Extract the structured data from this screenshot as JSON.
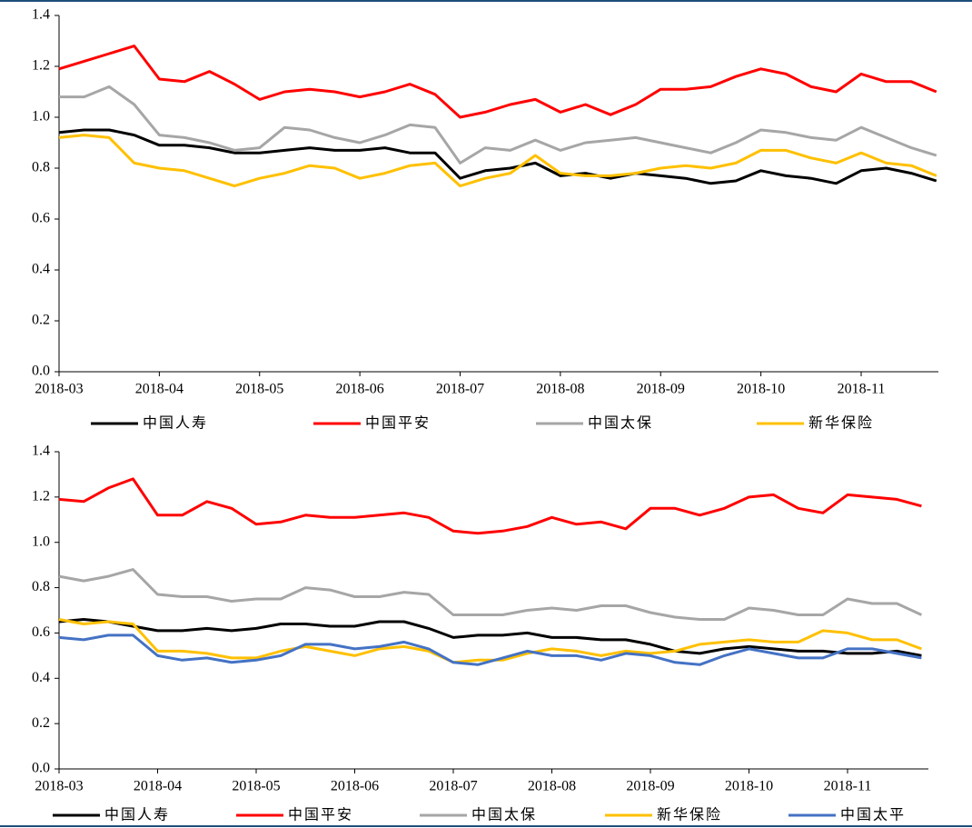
{
  "chart_data": [
    {
      "type": "line",
      "categories": [
        "2018-03",
        null,
        null,
        null,
        "2018-04",
        null,
        null,
        null,
        "2018-05",
        null,
        null,
        null,
        "2018-06",
        null,
        null,
        null,
        "2018-07",
        null,
        null,
        null,
        "2018-08",
        null,
        null,
        null,
        "2018-09",
        null,
        null,
        null,
        "2018-10",
        null,
        null,
        null,
        "2018-11",
        null,
        null,
        null
      ],
      "ylim": [
        0,
        1.4
      ],
      "yticks": [
        {
          "value": 0,
          "label": "0.0"
        },
        0.2,
        0.4,
        0.6,
        0.8,
        {
          "value": 1,
          "label": "1.0"
        },
        1.2,
        1.4
      ],
      "series": [
        {
          "name": "中国人寿",
          "color": "#000000",
          "values": [
            0.94,
            0.95,
            0.95,
            0.93,
            0.89,
            0.89,
            0.88,
            0.86,
            0.86,
            0.87,
            0.88,
            0.87,
            0.87,
            0.88,
            0.86,
            0.86,
            0.76,
            0.79,
            0.8,
            0.82,
            0.77,
            0.78,
            0.76,
            0.78,
            0.77,
            0.76,
            0.74,
            0.75,
            0.79,
            0.77,
            0.76,
            0.74,
            0.79,
            0.8,
            0.78,
            0.75
          ]
        },
        {
          "name": "中国平安",
          "color": "#ff0000",
          "values": [
            1.19,
            1.22,
            1.25,
            1.28,
            1.15,
            1.14,
            1.18,
            1.13,
            1.07,
            1.1,
            1.11,
            1.1,
            1.08,
            1.1,
            1.13,
            1.09,
            1.0,
            1.02,
            1.05,
            1.07,
            1.02,
            1.05,
            1.01,
            1.05,
            1.11,
            1.11,
            1.12,
            1.16,
            1.19,
            1.17,
            1.12,
            1.1,
            1.17,
            1.14,
            1.14,
            1.1
          ]
        },
        {
          "name": "中国太保",
          "color": "#a6a6a6",
          "values": [
            1.08,
            1.08,
            1.12,
            1.05,
            0.93,
            0.92,
            0.9,
            0.87,
            0.88,
            0.96,
            0.95,
            0.92,
            0.9,
            0.93,
            0.97,
            0.96,
            0.82,
            0.88,
            0.87,
            0.91,
            0.87,
            0.9,
            0.91,
            0.92,
            0.9,
            0.88,
            0.86,
            0.9,
            0.95,
            0.94,
            0.92,
            0.91,
            0.96,
            0.92,
            0.88,
            0.85
          ]
        },
        {
          "name": "新华保险",
          "color": "#ffc000",
          "values": [
            0.92,
            0.93,
            0.92,
            0.82,
            0.8,
            0.79,
            0.76,
            0.73,
            0.76,
            0.78,
            0.81,
            0.8,
            0.76,
            0.78,
            0.81,
            0.82,
            0.73,
            0.76,
            0.78,
            0.85,
            0.78,
            0.77,
            0.77,
            0.78,
            0.8,
            0.81,
            0.8,
            0.82,
            0.87,
            0.87,
            0.84,
            0.82,
            0.86,
            0.82,
            0.81,
            0.77
          ]
        }
      ]
    },
    {
      "type": "line",
      "categories": [
        "2018-03",
        null,
        null,
        null,
        "2018-04",
        null,
        null,
        null,
        "2018-05",
        null,
        null,
        null,
        "2018-06",
        null,
        null,
        null,
        "2018-07",
        null,
        null,
        null,
        "2018-08",
        null,
        null,
        null,
        "2018-09",
        null,
        null,
        null,
        "2018-10",
        null,
        null,
        null,
        "2018-11",
        null,
        null,
        null
      ],
      "ylim": [
        0,
        1.4
      ],
      "yticks": [
        {
          "value": 0,
          "label": "0.0"
        },
        0.2,
        0.4,
        0.6,
        0.8,
        {
          "value": 1,
          "label": "1.0"
        },
        1.2,
        1.4
      ],
      "series": [
        {
          "name": "中国人寿",
          "color": "#000000",
          "values": [
            0.65,
            0.66,
            0.65,
            0.63,
            0.61,
            0.61,
            0.62,
            0.61,
            0.62,
            0.64,
            0.64,
            0.63,
            0.63,
            0.65,
            0.65,
            0.62,
            0.58,
            0.59,
            0.59,
            0.6,
            0.58,
            0.58,
            0.57,
            0.57,
            0.55,
            0.52,
            0.51,
            0.53,
            0.54,
            0.53,
            0.52,
            0.52,
            0.51,
            0.51,
            0.52,
            0.5
          ]
        },
        {
          "name": "中国平安",
          "color": "#ff0000",
          "values": [
            1.19,
            1.18,
            1.24,
            1.28,
            1.12,
            1.12,
            1.18,
            1.15,
            1.08,
            1.09,
            1.12,
            1.11,
            1.11,
            1.12,
            1.13,
            1.11,
            1.05,
            1.04,
            1.05,
            1.07,
            1.11,
            1.08,
            1.09,
            1.06,
            1.15,
            1.15,
            1.12,
            1.15,
            1.2,
            1.21,
            1.15,
            1.13,
            1.21,
            1.2,
            1.19,
            1.16
          ]
        },
        {
          "name": "中国太保",
          "color": "#a6a6a6",
          "values": [
            0.85,
            0.83,
            0.85,
            0.88,
            0.77,
            0.76,
            0.76,
            0.74,
            0.75,
            0.75,
            0.8,
            0.79,
            0.76,
            0.76,
            0.78,
            0.77,
            0.68,
            0.68,
            0.68,
            0.7,
            0.71,
            0.7,
            0.72,
            0.72,
            0.69,
            0.67,
            0.66,
            0.66,
            0.71,
            0.7,
            0.68,
            0.68,
            0.75,
            0.73,
            0.73,
            0.68
          ]
        },
        {
          "name": "新华保险",
          "color": "#ffc000",
          "values": [
            0.66,
            0.64,
            0.65,
            0.64,
            0.52,
            0.52,
            0.51,
            0.49,
            0.49,
            0.52,
            0.54,
            0.52,
            0.5,
            0.53,
            0.54,
            0.52,
            0.47,
            0.48,
            0.48,
            0.51,
            0.53,
            0.52,
            0.5,
            0.52,
            0.51,
            0.52,
            0.55,
            0.56,
            0.57,
            0.56,
            0.56,
            0.61,
            0.6,
            0.57,
            0.57,
            0.53
          ]
        },
        {
          "name": "中国太平",
          "color": "#4472c4",
          "values": [
            0.58,
            0.57,
            0.59,
            0.59,
            0.5,
            0.48,
            0.49,
            0.47,
            0.48,
            0.5,
            0.55,
            0.55,
            0.53,
            0.54,
            0.56,
            0.53,
            0.47,
            0.46,
            0.49,
            0.52,
            0.5,
            0.5,
            0.48,
            0.51,
            0.5,
            0.47,
            0.46,
            0.5,
            0.53,
            0.51,
            0.49,
            0.49,
            0.53,
            0.53,
            0.51,
            0.49
          ]
        }
      ]
    }
  ]
}
